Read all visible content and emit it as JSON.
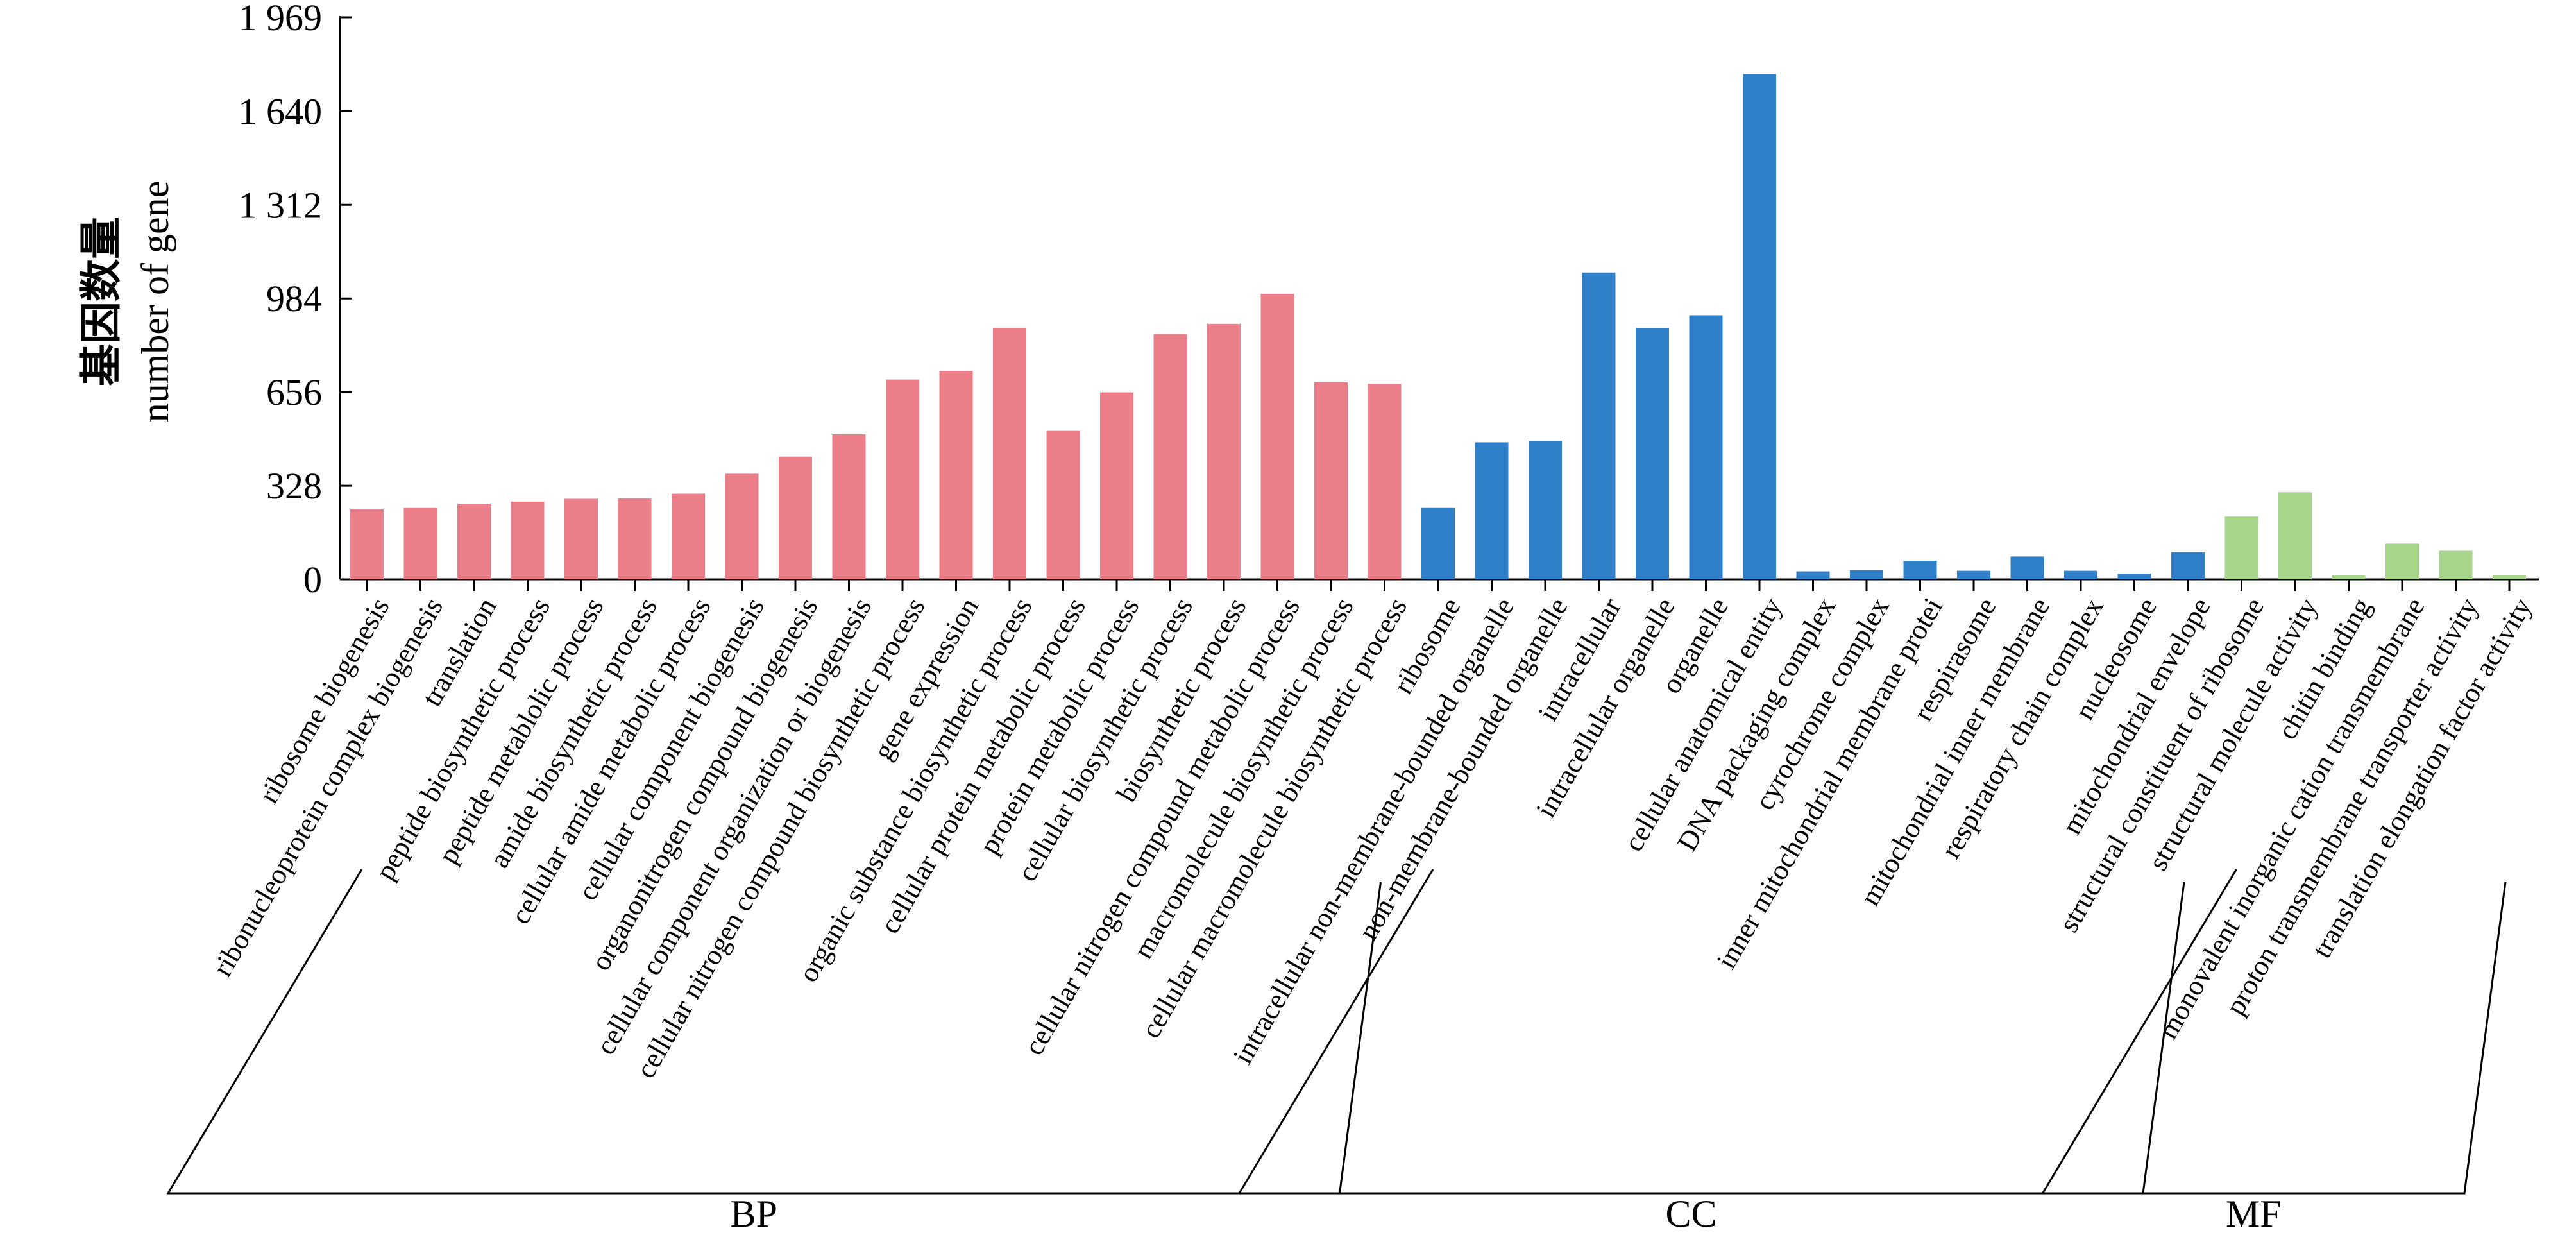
{
  "chart_data": {
    "type": "bar",
    "ylabel_zh": "基因数量",
    "ylabel_en": "number of gene",
    "ylim": [
      0,
      1969
    ],
    "yticks": [
      "0",
      "328",
      "656",
      "984",
      "1 312",
      "1 640",
      "1 969"
    ],
    "ytick_values": [
      0,
      328,
      656,
      984,
      1312,
      1640,
      1969
    ],
    "categories": [
      "ribosome biogenesis",
      "ribonucleoprotein complex biogenesis",
      "translation",
      "peptide biosynthetic process",
      "peptide metablolic process",
      "amide biosynthetic process",
      "cellular amide metabolic process",
      "cellular component biogenesis",
      "organonitrogen compound biogenesis",
      "cellular component organization or biogenesis",
      "cellular nitrogen compound biosynthetic process",
      "gene expression",
      "organic substance biosynthetic process",
      "cellular protein metabolic process",
      "protein metabolic process",
      "cellular biosynthetic process",
      "biosynthetic process",
      "cellular nitrogen compound metabolic process",
      "macromolecule biosynthetic process",
      "cellular macromolecule biosynthetic process",
      "ribosome",
      "intracellular non-membrane-bounded organelle",
      "non-membrane-bounded organelle",
      "intracellular",
      "intracellular organelle",
      "organelle",
      "cellular anatomical entity",
      "DNA packaging complex",
      "cyrochrome complex",
      "inner mitochondrial membrane protei",
      "respirasome",
      "mitochondrial inner membrane",
      "respiratory chain complex",
      "nucleosome",
      "mitochondrial envelope",
      "structural constituent of ribosome",
      "structural molecule activity",
      "chitin binding",
      "monovalent inorganic cation transmembrane",
      "proton transmembrane transporter activity",
      "translation elongation factor activity"
    ],
    "values": [
      245,
      250,
      265,
      272,
      282,
      283,
      300,
      370,
      430,
      508,
      700,
      730,
      880,
      520,
      655,
      860,
      895,
      1000,
      690,
      685,
      250,
      480,
      485,
      1075,
      880,
      925,
      1770,
      28,
      32,
      65,
      30,
      80,
      30,
      20,
      95,
      220,
      305,
      15,
      125,
      100,
      15
    ],
    "group_index": [
      0,
      0,
      0,
      0,
      0,
      0,
      0,
      0,
      0,
      0,
      0,
      0,
      0,
      0,
      0,
      0,
      0,
      0,
      0,
      0,
      1,
      1,
      1,
      1,
      1,
      1,
      1,
      1,
      1,
      1,
      1,
      1,
      1,
      1,
      1,
      2,
      2,
      2,
      2,
      2,
      2
    ],
    "groups": [
      {
        "name": "BP",
        "color": "#ec7e8a"
      },
      {
        "name": "CC",
        "color": "#2f80c8"
      },
      {
        "name": "MF",
        "color": "#a7d68a"
      }
    ]
  }
}
